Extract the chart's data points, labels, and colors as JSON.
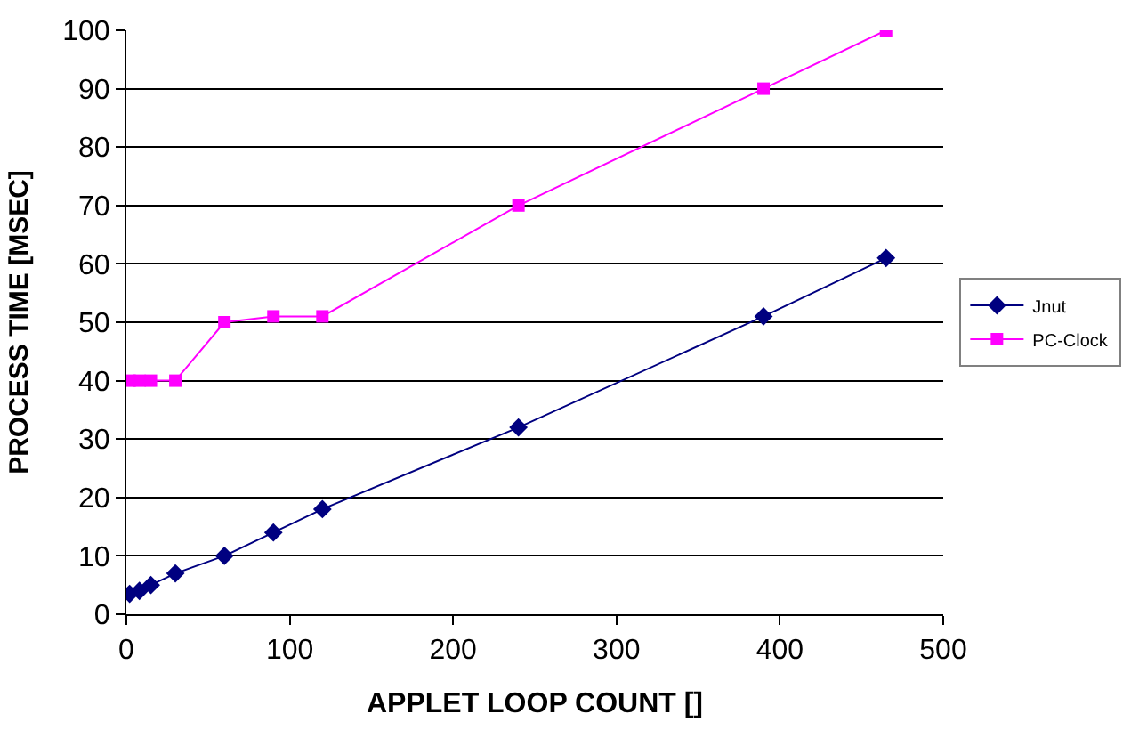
{
  "chart_data": {
    "type": "line",
    "xlabel": "APPLET LOOP COUNT []",
    "ylabel": "PROCESS TIME [MSEC]",
    "x": [
      2,
      8,
      15,
      30,
      60,
      90,
      120,
      240,
      390,
      465
    ],
    "series": [
      {
        "name": "Jnut",
        "color": "#000080",
        "marker": "diamond",
        "values": [
          3.5,
          4,
          5,
          7,
          10,
          14,
          18,
          32,
          51,
          61
        ]
      },
      {
        "name": "PC-Clock",
        "color": "#ff00ff",
        "marker": "square",
        "values": [
          40,
          40,
          40,
          40,
          50,
          51,
          51,
          70,
          90,
          100
        ]
      }
    ],
    "xlim": [
      0,
      500
    ],
    "xticks": [
      0,
      100,
      200,
      300,
      400,
      500
    ],
    "ylim": [
      0,
      100
    ],
    "yticks": [
      0,
      10,
      20,
      30,
      40,
      50,
      60,
      70,
      80,
      90,
      100
    ],
    "grid": "y",
    "legend": "right"
  }
}
